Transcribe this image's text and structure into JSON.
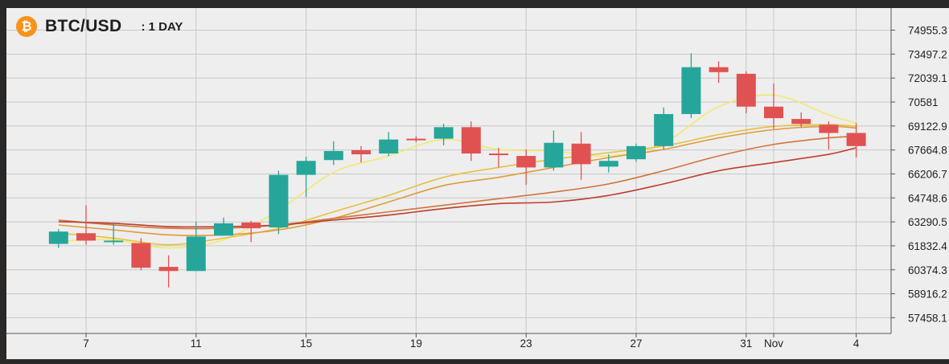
{
  "header": {
    "icon": "bitcoin-icon",
    "icon_glyph": "₿",
    "pair": "BTC/USD",
    "interval": ": 1 DAY"
  },
  "colors": {
    "up": "#26a69a",
    "down": "#e05252",
    "plot_bg": "#eeeeee",
    "grid": "#c8c8c8",
    "ma_lines": [
      "#f2ea6e",
      "#e8c040",
      "#e09a3c",
      "#d2753a",
      "#bf3e2c"
    ]
  },
  "chart_data": {
    "type": "candlestick",
    "ylim": [
      56500,
      76300
    ],
    "grid": true,
    "y_ticks": [
      "74955.3",
      "73497.2",
      "72039.1",
      "70581",
      "69122.9",
      "67664.8",
      "66206.7",
      "64748.6",
      "63290.5",
      "61832.4",
      "60374.3",
      "58916.2",
      "57458.1"
    ],
    "y_tick_values": [
      74955.3,
      73497.2,
      72039.1,
      70581,
      69122.9,
      67664.8,
      66206.7,
      64748.6,
      63290.5,
      61832.4,
      60374.3,
      58916.2,
      57458.1
    ],
    "x_labels": [
      {
        "label": "7",
        "day": 7
      },
      {
        "label": "11",
        "day": 11
      },
      {
        "label": "15",
        "day": 15
      },
      {
        "label": "19",
        "day": 19
      },
      {
        "label": "23",
        "day": 23
      },
      {
        "label": "27",
        "day": 27
      },
      {
        "label": "31",
        "day": 31
      },
      {
        "label": "Nov",
        "day": 32
      },
      {
        "label": "4",
        "day": 35
      }
    ],
    "candles": [
      {
        "day": 6,
        "open": 61950,
        "high": 62850,
        "low": 61700,
        "close": 62700
      },
      {
        "day": 7,
        "open": 62600,
        "high": 64300,
        "low": 61900,
        "close": 62150
      },
      {
        "day": 8,
        "open": 62150,
        "high": 63250,
        "low": 61900,
        "close": 62150
      },
      {
        "day": 9,
        "open": 62000,
        "high": 62300,
        "low": 60350,
        "close": 60500
      },
      {
        "day": 10,
        "open": 60550,
        "high": 61250,
        "low": 59300,
        "close": 60300
      },
      {
        "day": 11,
        "open": 60300,
        "high": 63300,
        "low": 60300,
        "close": 62400
      },
      {
        "day": 12,
        "open": 62450,
        "high": 63550,
        "low": 62450,
        "close": 63200
      },
      {
        "day": 13,
        "open": 63250,
        "high": 63350,
        "low": 62050,
        "close": 62900
      },
      {
        "day": 14,
        "open": 62950,
        "high": 66400,
        "low": 62550,
        "close": 66150
      },
      {
        "day": 15,
        "open": 66150,
        "high": 67250,
        "low": 64800,
        "close": 67000
      },
      {
        "day": 16,
        "open": 67050,
        "high": 68200,
        "low": 66750,
        "close": 67600
      },
      {
        "day": 17,
        "open": 67650,
        "high": 67900,
        "low": 66900,
        "close": 67400
      },
      {
        "day": 18,
        "open": 67450,
        "high": 68750,
        "low": 67300,
        "close": 68300
      },
      {
        "day": 19,
        "open": 68350,
        "high": 68500,
        "low": 68150,
        "close": 68300
      },
      {
        "day": 20,
        "open": 68350,
        "high": 69250,
        "low": 67950,
        "close": 69050
      },
      {
        "day": 21,
        "open": 69050,
        "high": 69400,
        "low": 67000,
        "close": 67450
      },
      {
        "day": 22,
        "open": 67450,
        "high": 67800,
        "low": 66600,
        "close": 67350
      },
      {
        "day": 23,
        "open": 67300,
        "high": 67700,
        "low": 65550,
        "close": 66600
      },
      {
        "day": 24,
        "open": 66600,
        "high": 68850,
        "low": 66400,
        "close": 68100
      },
      {
        "day": 25,
        "open": 68050,
        "high": 68750,
        "low": 65850,
        "close": 66800
      },
      {
        "day": 26,
        "open": 66650,
        "high": 67400,
        "low": 66300,
        "close": 67000
      },
      {
        "day": 27,
        "open": 67100,
        "high": 68050,
        "low": 66950,
        "close": 67900
      },
      {
        "day": 28,
        "open": 67900,
        "high": 70250,
        "low": 67700,
        "close": 69850
      },
      {
        "day": 29,
        "open": 69850,
        "high": 73550,
        "low": 69600,
        "close": 72700
      },
      {
        "day": 30,
        "open": 72700,
        "high": 73050,
        "low": 71750,
        "close": 72400
      },
      {
        "day": 31,
        "open": 72300,
        "high": 72450,
        "low": 69900,
        "close": 70300
      },
      {
        "day": 32,
        "open": 70300,
        "high": 71700,
        "low": 68950,
        "close": 69600
      },
      {
        "day": 33,
        "open": 69550,
        "high": 69950,
        "low": 69050,
        "close": 69250
      },
      {
        "day": 34,
        "open": 69200,
        "high": 69400,
        "low": 67700,
        "close": 68700
      },
      {
        "day": 35,
        "open": 68700,
        "high": 69300,
        "low": 67200,
        "close": 67900
      }
    ],
    "moving_averages": [
      {
        "color": "#f2ea6e",
        "points": [
          [
            6,
            62100
          ],
          [
            8,
            62200
          ],
          [
            10,
            61700
          ],
          [
            12,
            62200
          ],
          [
            14,
            64000
          ],
          [
            16,
            66300
          ],
          [
            18,
            67300
          ],
          [
            20,
            68300
          ],
          [
            22,
            67700
          ],
          [
            24,
            67600
          ],
          [
            26,
            67300
          ],
          [
            28,
            68100
          ],
          [
            30,
            70300
          ],
          [
            32,
            71000
          ],
          [
            34,
            69800
          ],
          [
            35,
            69300
          ]
        ]
      },
      {
        "color": "#e8c040",
        "points": [
          [
            6,
            62600
          ],
          [
            8,
            62300
          ],
          [
            10,
            61900
          ],
          [
            12,
            62300
          ],
          [
            14,
            62900
          ],
          [
            16,
            63900
          ],
          [
            18,
            64900
          ],
          [
            20,
            66000
          ],
          [
            22,
            66600
          ],
          [
            24,
            67100
          ],
          [
            26,
            67500
          ],
          [
            28,
            67900
          ],
          [
            30,
            68600
          ],
          [
            32,
            69100
          ],
          [
            34,
            69200
          ],
          [
            35,
            69100
          ]
        ]
      },
      {
        "color": "#e09a3c",
        "points": [
          [
            6,
            63100
          ],
          [
            8,
            62800
          ],
          [
            10,
            62500
          ],
          [
            12,
            62500
          ],
          [
            14,
            62800
          ],
          [
            16,
            63500
          ],
          [
            18,
            64500
          ],
          [
            20,
            65500
          ],
          [
            22,
            66000
          ],
          [
            24,
            66600
          ],
          [
            26,
            67200
          ],
          [
            28,
            67700
          ],
          [
            30,
            68400
          ],
          [
            32,
            68900
          ],
          [
            34,
            69100
          ],
          [
            35,
            69000
          ]
        ]
      },
      {
        "color": "#d2753a",
        "points": [
          [
            6,
            63400
          ],
          [
            8,
            63100
          ],
          [
            10,
            62900
          ],
          [
            12,
            62900
          ],
          [
            14,
            63100
          ],
          [
            16,
            63500
          ],
          [
            18,
            63900
          ],
          [
            20,
            64300
          ],
          [
            22,
            64700
          ],
          [
            24,
            65100
          ],
          [
            26,
            65600
          ],
          [
            28,
            66400
          ],
          [
            30,
            67300
          ],
          [
            32,
            68000
          ],
          [
            34,
            68400
          ],
          [
            35,
            68500
          ]
        ]
      },
      {
        "color": "#bf3e2c",
        "points": [
          [
            6,
            63300
          ],
          [
            8,
            63200
          ],
          [
            10,
            63000
          ],
          [
            12,
            63000
          ],
          [
            14,
            63100
          ],
          [
            16,
            63400
          ],
          [
            18,
            63700
          ],
          [
            20,
            64100
          ],
          [
            22,
            64400
          ],
          [
            24,
            64500
          ],
          [
            26,
            64900
          ],
          [
            28,
            65600
          ],
          [
            30,
            66400
          ],
          [
            32,
            66900
          ],
          [
            34,
            67400
          ],
          [
            35,
            67800
          ]
        ]
      }
    ]
  }
}
